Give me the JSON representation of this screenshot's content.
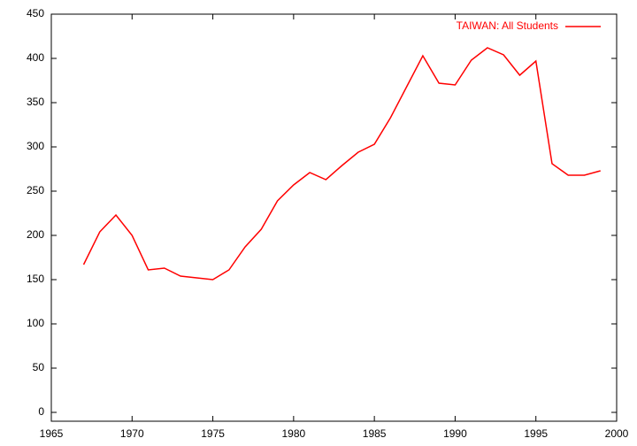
{
  "chart_data": {
    "type": "line",
    "x": [
      1967,
      1968,
      1969,
      1970,
      1971,
      1972,
      1973,
      1974,
      1975,
      1976,
      1977,
      1978,
      1979,
      1980,
      1981,
      1982,
      1983,
      1984,
      1985,
      1986,
      1987,
      1988,
      1989,
      1990,
      1991,
      1992,
      1993,
      1994,
      1995,
      1996,
      1997,
      1998,
      1999
    ],
    "series": [
      {
        "name": "TAIWAN: All Students",
        "color": "#ff0000",
        "values": [
          167,
          204,
          223,
          200,
          161,
          163,
          154,
          152,
          150,
          161,
          187,
          207,
          239,
          257,
          271,
          263,
          279,
          294,
          303,
          333,
          368,
          403,
          372,
          370,
          398,
          412,
          404,
          381,
          397,
          281,
          268,
          268,
          273
        ]
      }
    ],
    "xlim": [
      1965,
      2000
    ],
    "xticks": [
      1965,
      1970,
      1975,
      1980,
      1985,
      1990,
      1995,
      2000
    ],
    "ylim": [
      -10,
      450
    ],
    "yticks": [
      0,
      50,
      100,
      150,
      200,
      250,
      300,
      350,
      400,
      450
    ],
    "legend": "top-right"
  }
}
